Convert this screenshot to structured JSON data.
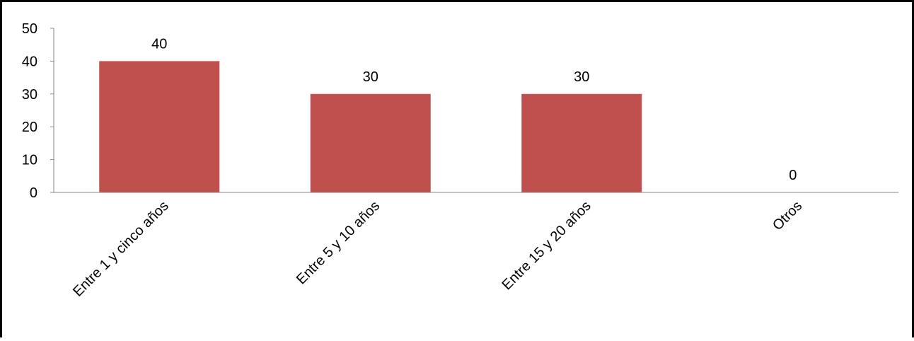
{
  "chart_data": {
    "type": "bar",
    "title": "",
    "xlabel": "",
    "ylabel": "",
    "categories": [
      "Entre 1 y cinco años",
      "Entre 5 y 10 años",
      "Entre 15 y 20 años",
      "Otros"
    ],
    "values": [
      40,
      30,
      30,
      0
    ],
    "data_labels": [
      "40",
      "30",
      "30",
      "0"
    ],
    "ylim": [
      0,
      50
    ],
    "yticks": [
      0,
      10,
      20,
      30,
      40,
      50
    ],
    "ytick_labels": [
      "0",
      "10",
      "20",
      "30",
      "40",
      "50"
    ],
    "grid": false,
    "legend": "none",
    "bar_color": "#C0504D"
  }
}
